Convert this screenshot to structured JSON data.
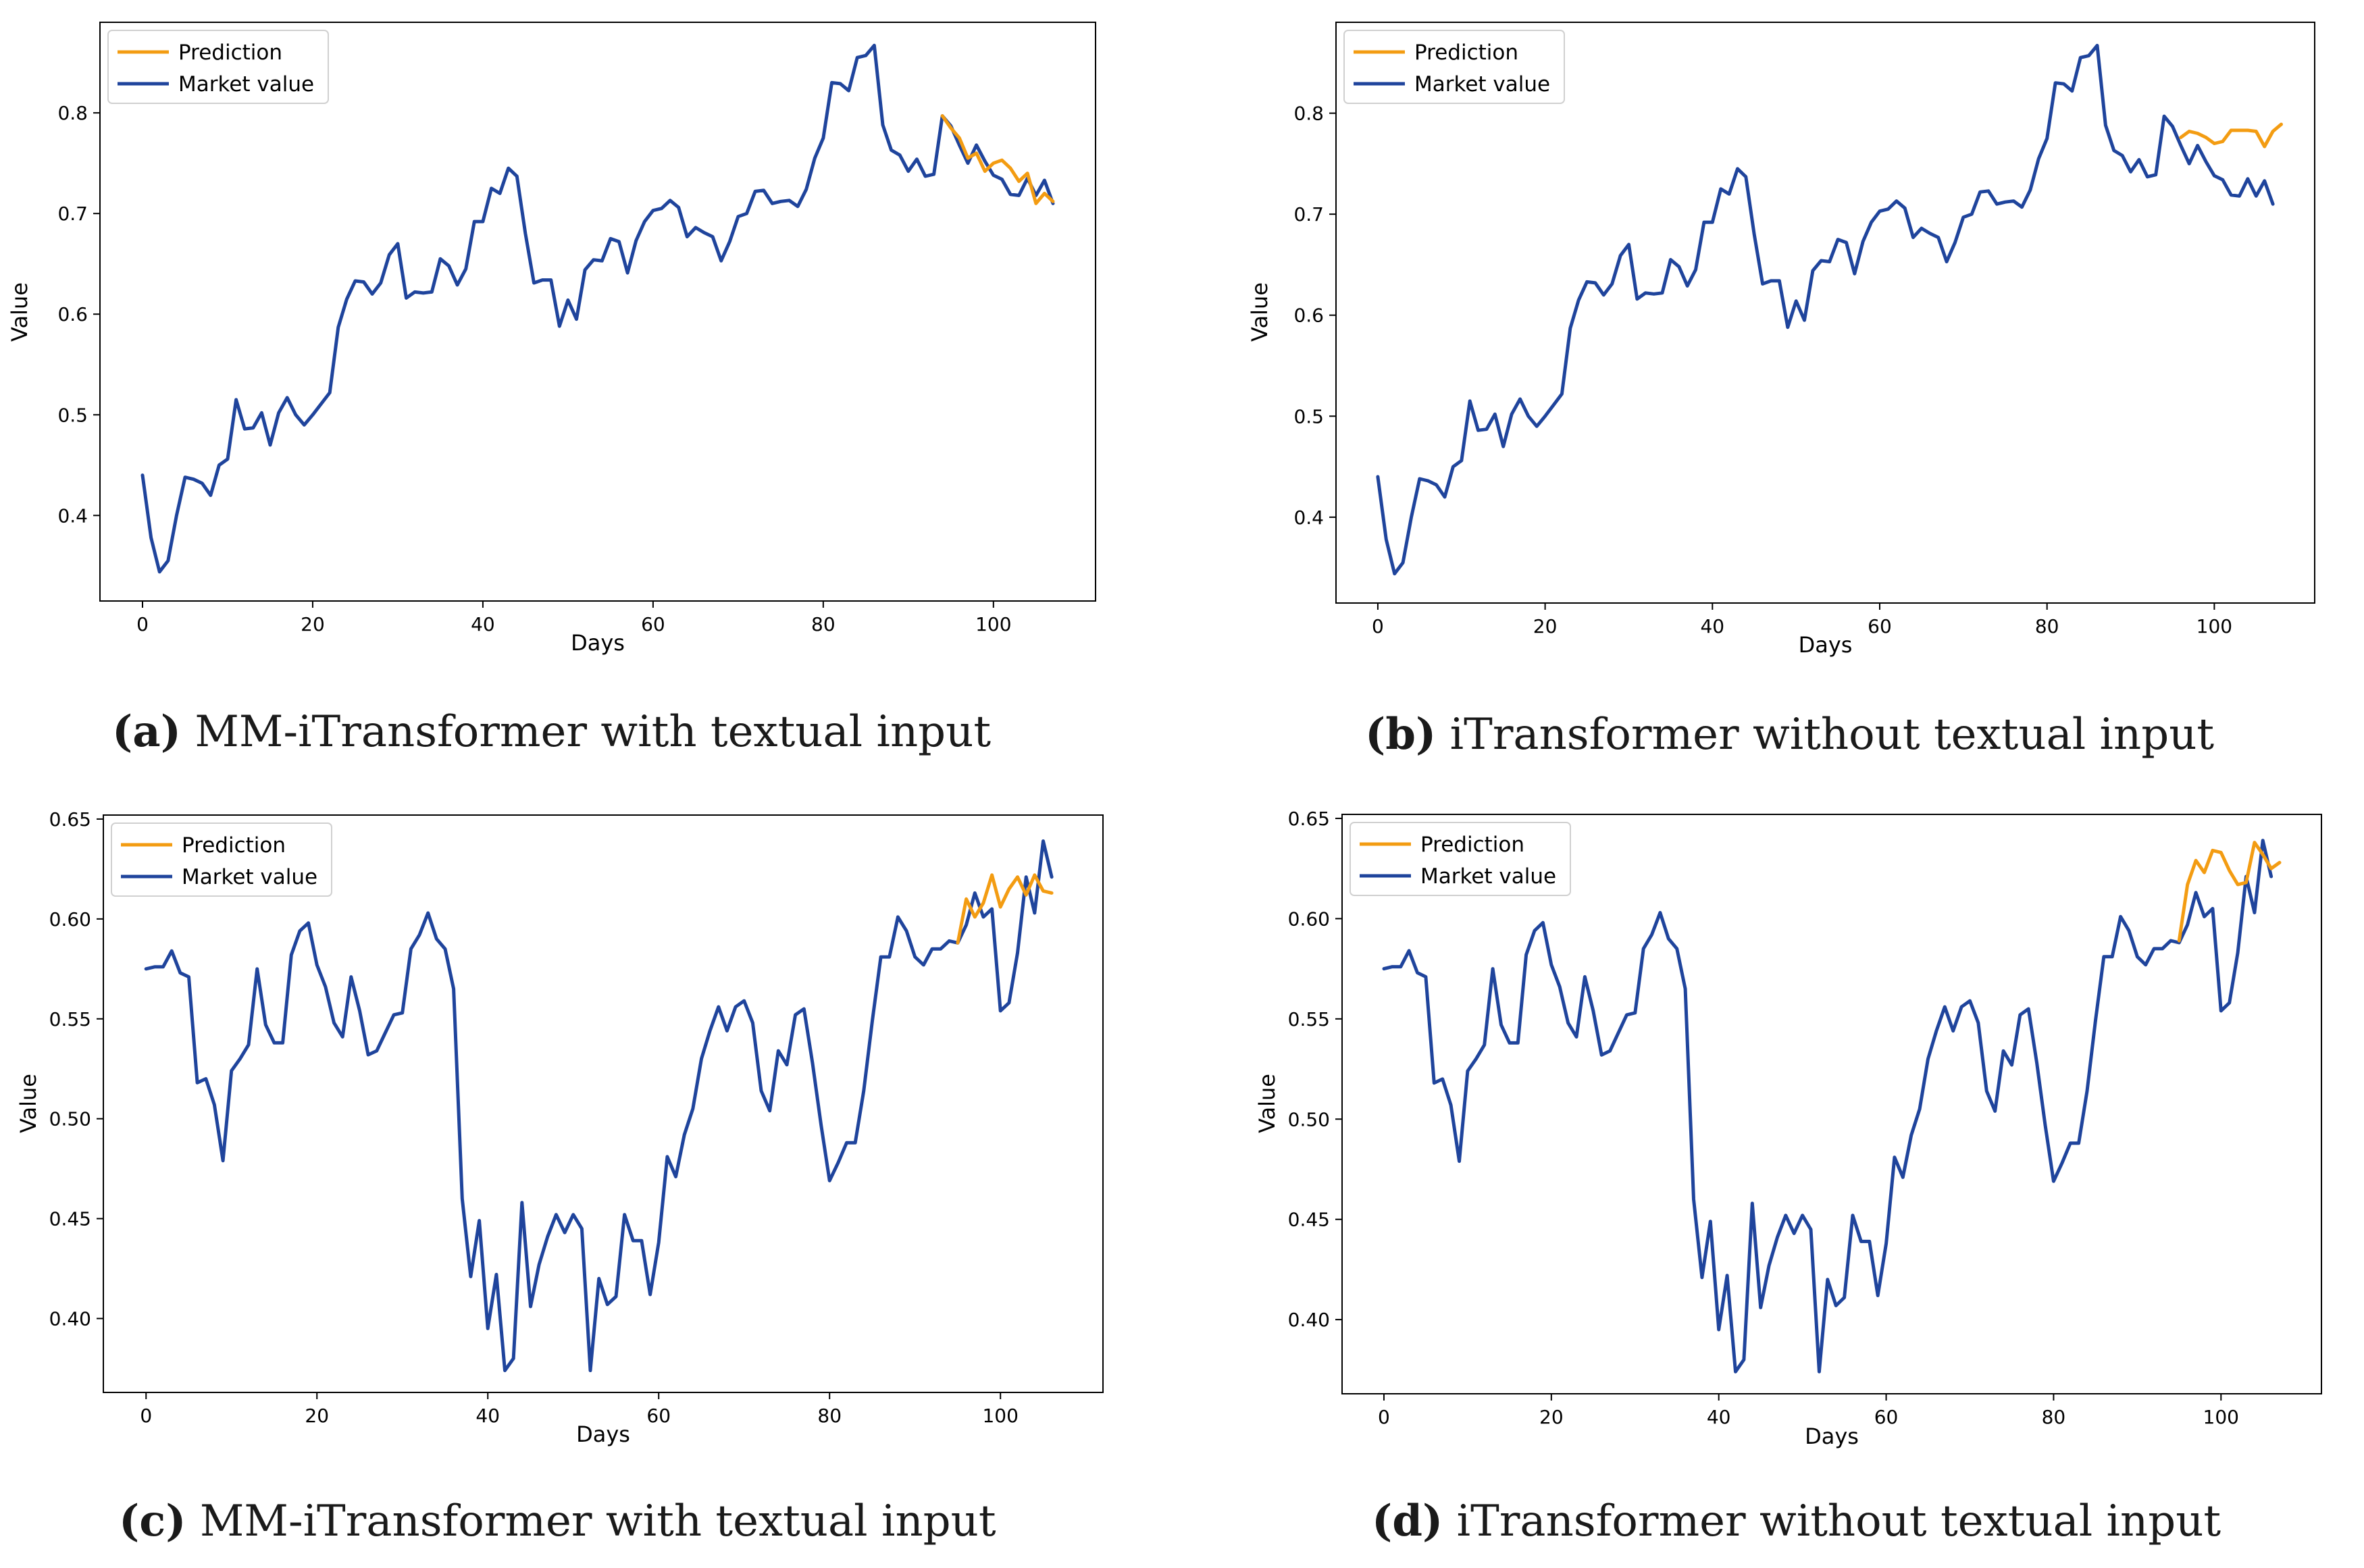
{
  "colors": {
    "prediction": "#f39c12",
    "market": "#1f449c"
  },
  "chart_data": [
    {
      "type": "line",
      "xlabel": "Days",
      "ylabel": "Value",
      "xlim": [
        -5,
        112
      ],
      "ylim": [
        0.315,
        0.89
      ],
      "xticks": [
        0,
        20,
        40,
        60,
        80,
        100
      ],
      "yticks": [
        0.4,
        0.5,
        0.6,
        0.7,
        0.8
      ],
      "ytick_labels": [
        "0.4",
        "0.5",
        "0.6",
        "0.7",
        "0.8"
      ],
      "legend": [
        "Prediction",
        "Market value"
      ],
      "caption_label": "(a)",
      "caption_text": "MM-iTransformer with textual input",
      "series": [
        {
          "name": "Market value",
          "x_start": 0,
          "values": [
            0.44,
            0.378,
            0.344,
            0.355,
            0.4,
            0.438,
            0.436,
            0.432,
            0.42,
            0.45,
            0.456,
            0.515,
            0.486,
            0.487,
            0.502,
            0.47,
            0.502,
            0.517,
            0.5,
            0.49,
            0.5,
            0.511,
            0.522,
            0.587,
            0.615,
            0.633,
            0.632,
            0.62,
            0.631,
            0.659,
            0.67,
            0.616,
            0.622,
            0.621,
            0.622,
            0.655,
            0.648,
            0.629,
            0.645,
            0.692,
            0.692,
            0.725,
            0.72,
            0.745,
            0.737,
            0.68,
            0.631,
            0.634,
            0.634,
            0.588,
            0.614,
            0.595,
            0.644,
            0.654,
            0.653,
            0.675,
            0.672,
            0.641,
            0.673,
            0.692,
            0.703,
            0.705,
            0.713,
            0.706,
            0.677,
            0.686,
            0.681,
            0.677,
            0.653,
            0.672,
            0.697,
            0.7,
            0.722,
            0.723,
            0.71,
            0.712,
            0.713,
            0.707,
            0.724,
            0.755,
            0.775,
            0.83,
            0.829,
            0.822,
            0.855,
            0.857,
            0.867,
            0.788,
            0.763,
            0.758,
            0.742,
            0.754,
            0.737,
            0.739,
            0.797,
            0.787,
            0.768,
            0.75,
            0.768,
            0.752,
            0.738,
            0.734,
            0.719,
            0.718,
            0.735,
            0.718,
            0.733,
            0.71
          ]
        },
        {
          "name": "Prediction",
          "x_start": 94,
          "values": [
            0.797,
            0.785,
            0.775,
            0.755,
            0.76,
            0.742,
            0.75,
            0.753,
            0.745,
            0.732,
            0.74,
            0.71,
            0.72,
            0.712
          ]
        }
      ]
    },
    {
      "type": "line",
      "xlabel": "Days",
      "ylabel": "Value",
      "xlim": [
        -5,
        112
      ],
      "ylim": [
        0.315,
        0.89
      ],
      "xticks": [
        0,
        20,
        40,
        60,
        80,
        100
      ],
      "yticks": [
        0.4,
        0.5,
        0.6,
        0.7,
        0.8
      ],
      "ytick_labels": [
        "0.4",
        "0.5",
        "0.6",
        "0.7",
        "0.8"
      ],
      "legend": [
        "Prediction",
        "Market value"
      ],
      "caption_label": "(b)",
      "caption_text": "iTransformer without textual input",
      "series": [
        {
          "name": "Market value",
          "x_start": 0,
          "values": [
            0.44,
            0.378,
            0.344,
            0.355,
            0.4,
            0.438,
            0.436,
            0.432,
            0.42,
            0.45,
            0.456,
            0.515,
            0.486,
            0.487,
            0.502,
            0.47,
            0.502,
            0.517,
            0.5,
            0.49,
            0.5,
            0.511,
            0.522,
            0.587,
            0.615,
            0.633,
            0.632,
            0.62,
            0.631,
            0.659,
            0.67,
            0.616,
            0.622,
            0.621,
            0.622,
            0.655,
            0.648,
            0.629,
            0.645,
            0.692,
            0.692,
            0.725,
            0.72,
            0.745,
            0.737,
            0.68,
            0.631,
            0.634,
            0.634,
            0.588,
            0.614,
            0.595,
            0.644,
            0.654,
            0.653,
            0.675,
            0.672,
            0.641,
            0.673,
            0.692,
            0.703,
            0.705,
            0.713,
            0.706,
            0.677,
            0.686,
            0.681,
            0.677,
            0.653,
            0.672,
            0.697,
            0.7,
            0.722,
            0.723,
            0.71,
            0.712,
            0.713,
            0.707,
            0.724,
            0.755,
            0.775,
            0.83,
            0.829,
            0.822,
            0.855,
            0.857,
            0.867,
            0.788,
            0.763,
            0.758,
            0.742,
            0.754,
            0.737,
            0.739,
            0.797,
            0.787,
            0.768,
            0.75,
            0.768,
            0.752,
            0.738,
            0.734,
            0.719,
            0.718,
            0.735,
            0.718,
            0.733,
            0.71
          ]
        },
        {
          "name": "Prediction",
          "x_start": 96,
          "values": [
            0.776,
            0.782,
            0.78,
            0.776,
            0.77,
            0.772,
            0.783,
            0.783,
            0.783,
            0.782,
            0.767,
            0.782,
            0.789
          ]
        }
      ]
    },
    {
      "type": "line",
      "xlabel": "Days",
      "ylabel": "Value",
      "xlim": [
        -5,
        112
      ],
      "ylim": [
        0.363,
        0.652
      ],
      "xticks": [
        0,
        20,
        40,
        60,
        80,
        100
      ],
      "yticks": [
        0.4,
        0.45,
        0.5,
        0.55,
        0.6,
        0.65
      ],
      "ytick_labels": [
        "0.40",
        "0.45",
        "0.50",
        "0.55",
        "0.60",
        "0.65"
      ],
      "legend": [
        "Prediction",
        "Market value"
      ],
      "caption_label": "(c)",
      "caption_text": "MM-iTransformer with textual input",
      "series": [
        {
          "name": "Market value",
          "x_start": 0,
          "values": [
            0.575,
            0.576,
            0.576,
            0.584,
            0.573,
            0.571,
            0.518,
            0.52,
            0.507,
            0.479,
            0.524,
            0.53,
            0.537,
            0.575,
            0.547,
            0.538,
            0.538,
            0.582,
            0.594,
            0.598,
            0.577,
            0.566,
            0.548,
            0.541,
            0.571,
            0.554,
            0.532,
            0.534,
            0.543,
            0.552,
            0.553,
            0.585,
            0.592,
            0.603,
            0.59,
            0.585,
            0.565,
            0.46,
            0.421,
            0.449,
            0.395,
            0.422,
            0.374,
            0.38,
            0.458,
            0.406,
            0.427,
            0.441,
            0.452,
            0.443,
            0.452,
            0.445,
            0.374,
            0.42,
            0.407,
            0.411,
            0.452,
            0.439,
            0.439,
            0.412,
            0.438,
            0.481,
            0.471,
            0.492,
            0.505,
            0.53,
            0.544,
            0.556,
            0.544,
            0.556,
            0.559,
            0.548,
            0.514,
            0.504,
            0.534,
            0.527,
            0.552,
            0.555,
            0.528,
            0.497,
            0.469,
            0.478,
            0.488,
            0.488,
            0.514,
            0.549,
            0.581,
            0.581,
            0.601,
            0.594,
            0.581,
            0.577,
            0.585,
            0.585,
            0.589,
            0.588,
            0.597,
            0.613,
            0.601,
            0.605,
            0.554,
            0.558,
            0.583,
            0.621,
            0.603,
            0.639,
            0.621
          ]
        },
        {
          "name": "Prediction",
          "x_start": 95,
          "values": [
            0.588,
            0.61,
            0.601,
            0.608,
            0.622,
            0.606,
            0.615,
            0.621,
            0.612,
            0.622,
            0.614,
            0.613
          ]
        }
      ]
    },
    {
      "type": "line",
      "xlabel": "Days",
      "ylabel": "Value",
      "xlim": [
        -5,
        112
      ],
      "ylim": [
        0.363,
        0.652
      ],
      "xticks": [
        0,
        20,
        40,
        60,
        80,
        100
      ],
      "yticks": [
        0.4,
        0.45,
        0.5,
        0.55,
        0.6,
        0.65
      ],
      "ytick_labels": [
        "0.40",
        "0.45",
        "0.50",
        "0.55",
        "0.60",
        "0.65"
      ],
      "legend": [
        "Prediction",
        "Market value"
      ],
      "caption_label": "(d)",
      "caption_text": "iTransformer without textual input",
      "series": [
        {
          "name": "Market value",
          "x_start": 0,
          "values": [
            0.575,
            0.576,
            0.576,
            0.584,
            0.573,
            0.571,
            0.518,
            0.52,
            0.507,
            0.479,
            0.524,
            0.53,
            0.537,
            0.575,
            0.547,
            0.538,
            0.538,
            0.582,
            0.594,
            0.598,
            0.577,
            0.566,
            0.548,
            0.541,
            0.571,
            0.554,
            0.532,
            0.534,
            0.543,
            0.552,
            0.553,
            0.585,
            0.592,
            0.603,
            0.59,
            0.585,
            0.565,
            0.46,
            0.421,
            0.449,
            0.395,
            0.422,
            0.374,
            0.38,
            0.458,
            0.406,
            0.427,
            0.441,
            0.452,
            0.443,
            0.452,
            0.445,
            0.374,
            0.42,
            0.407,
            0.411,
            0.452,
            0.439,
            0.439,
            0.412,
            0.438,
            0.481,
            0.471,
            0.492,
            0.505,
            0.53,
            0.544,
            0.556,
            0.544,
            0.556,
            0.559,
            0.548,
            0.514,
            0.504,
            0.534,
            0.527,
            0.552,
            0.555,
            0.528,
            0.497,
            0.469,
            0.478,
            0.488,
            0.488,
            0.514,
            0.549,
            0.581,
            0.581,
            0.601,
            0.594,
            0.581,
            0.577,
            0.585,
            0.585,
            0.589,
            0.588,
            0.597,
            0.613,
            0.601,
            0.605,
            0.554,
            0.558,
            0.583,
            0.621,
            0.603,
            0.639,
            0.621
          ]
        },
        {
          "name": "Prediction",
          "x_start": 95,
          "values": [
            0.589,
            0.617,
            0.629,
            0.623,
            0.634,
            0.633,
            0.624,
            0.617,
            0.618,
            0.638,
            0.632,
            0.625,
            0.628
          ]
        }
      ]
    }
  ]
}
